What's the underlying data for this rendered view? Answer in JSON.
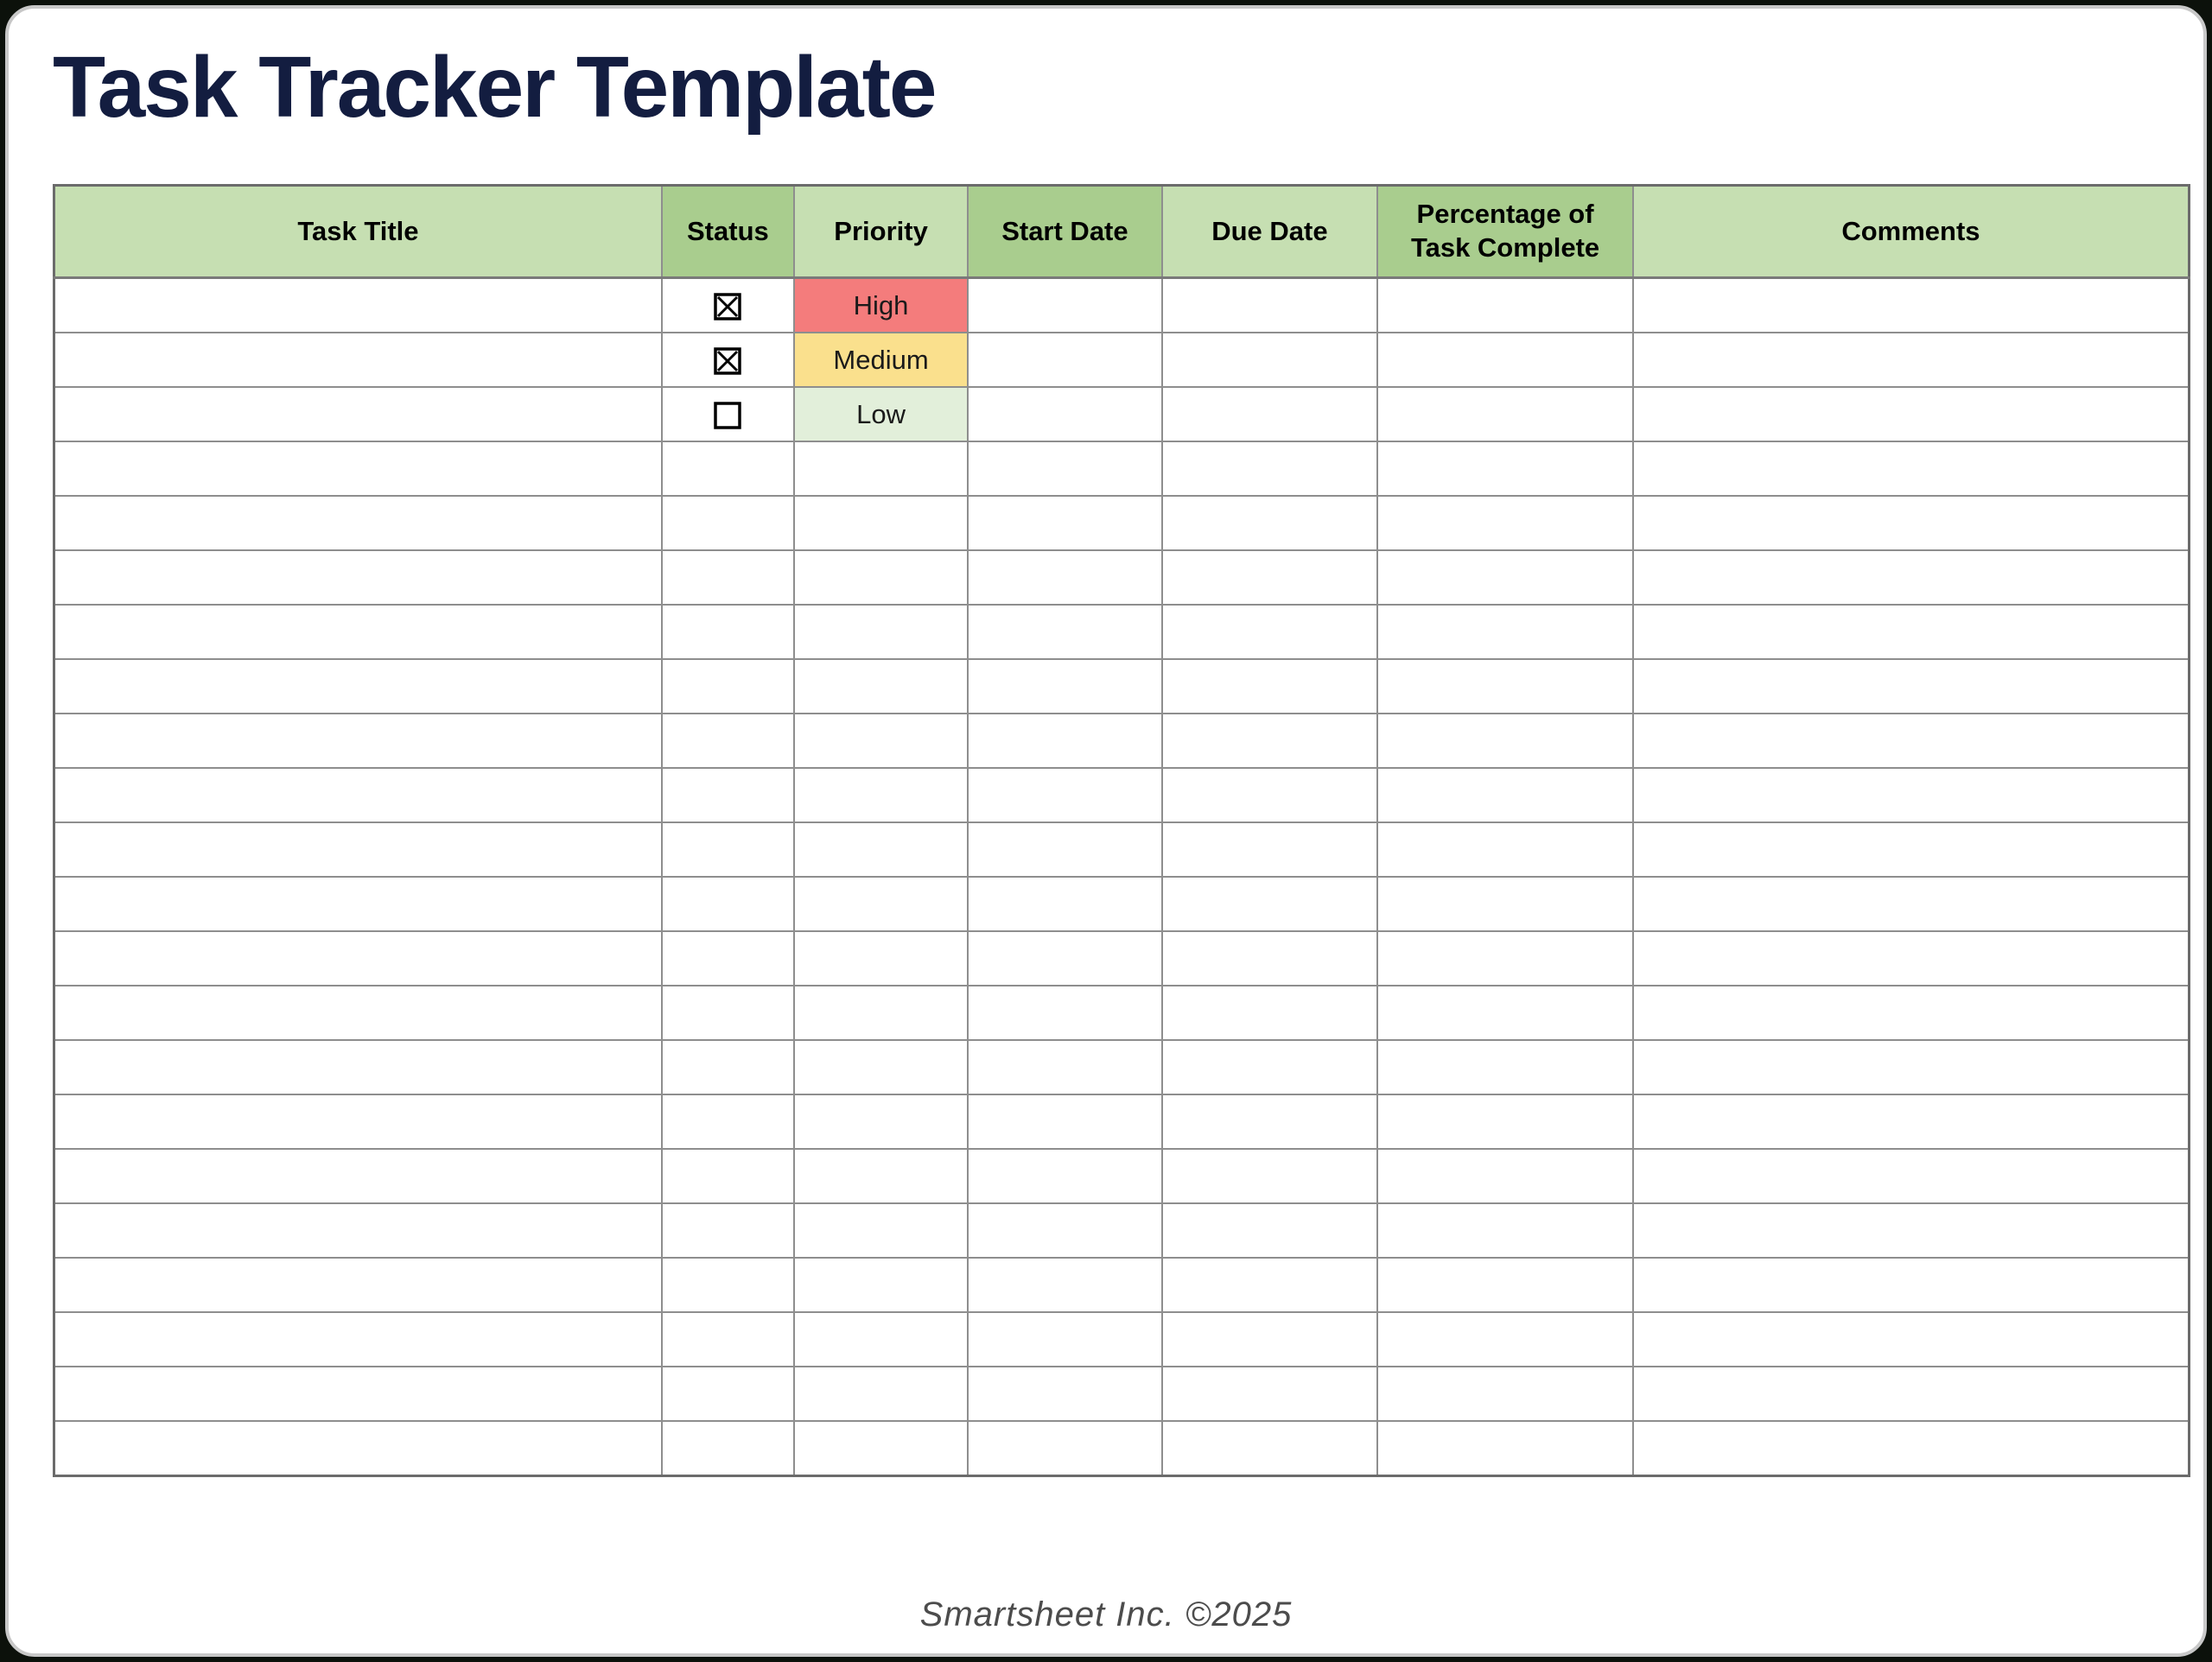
{
  "page": {
    "title": "Task Tracker Template",
    "footer": "Smartsheet Inc. ©2025"
  },
  "colors": {
    "title_navy": "#131d40",
    "header_green_light": "#c6dfb2",
    "header_green_dark": "#a9cd8e",
    "grid_border": "#8e8e8e",
    "outer_border": "#6b6b6b",
    "card_border": "#c8c8c8",
    "outside_background": "#0c110b",
    "priority_high_bg": "#f47c7c",
    "priority_medium_bg": "#fae08d",
    "priority_low_bg": "#e2efda"
  },
  "icons": {
    "checked": "checkbox-checked-icon",
    "unchecked": "checkbox-unchecked-icon"
  },
  "table": {
    "columns": [
      {
        "key": "task_title",
        "label": "Task Title",
        "shade": "light",
        "width": "29.5%"
      },
      {
        "key": "status",
        "label": "Status",
        "shade": "dark",
        "width": "5.6%"
      },
      {
        "key": "priority",
        "label": "Priority",
        "shade": "light",
        "width": "7.7%"
      },
      {
        "key": "start_date",
        "label": "Start Date",
        "shade": "dark",
        "width": "8.7%"
      },
      {
        "key": "due_date",
        "label": "Due Date",
        "shade": "light",
        "width": "9.8%"
      },
      {
        "key": "pct_complete",
        "label": "Percentage of Task Complete",
        "shade": "dark",
        "width": "11.8%"
      },
      {
        "key": "comments",
        "label": "Comments",
        "shade": "light",
        "width": "26.9%"
      }
    ],
    "total_rows": 22,
    "rows": [
      {
        "task_title": "",
        "status_checkbox": "checked",
        "priority": "High",
        "start_date": "",
        "due_date": "",
        "pct_complete": "",
        "comments": ""
      },
      {
        "task_title": "",
        "status_checkbox": "checked",
        "priority": "Medium",
        "start_date": "",
        "due_date": "",
        "pct_complete": "",
        "comments": ""
      },
      {
        "task_title": "",
        "status_checkbox": "unchecked",
        "priority": "Low",
        "start_date": "",
        "due_date": "",
        "pct_complete": "",
        "comments": ""
      }
    ],
    "priority_colors": {
      "High": "#f47c7c",
      "Medium": "#fae08d",
      "Low": "#e2efda"
    }
  }
}
